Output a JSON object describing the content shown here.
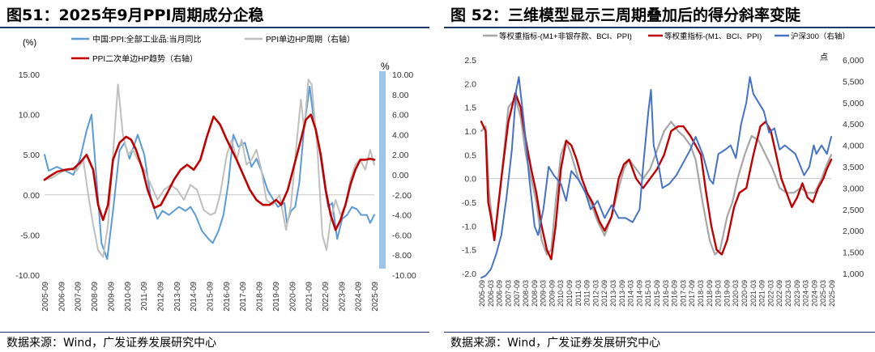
{
  "colors": {
    "blue": "#5b9bd5",
    "red": "#c00000",
    "gray": "#bfbfbf",
    "gray2": "#a6a6a6",
    "blue2": "#4472c4",
    "band": "#9dc3e6",
    "rule": "#1f3864"
  },
  "left": {
    "title": "图51：2025年9月PPI周期成分企稳",
    "source": "数据来源：Wind，广发证券发展研究中心",
    "chart_data": {
      "type": "line",
      "y_left_unit": "(%)",
      "y_right_unit": "%",
      "ylim_left": [
        -10,
        15
      ],
      "ylim_right": [
        -10,
        10
      ],
      "yticks_left": [
        "15.00",
        "10.00",
        "5.00",
        "0.00",
        "-5.00",
        "-10.00"
      ],
      "yticks_right": [
        "10.00",
        "8.00",
        "6.00",
        "4.00",
        "2.00",
        "0.00",
        "-2.00",
        "-4.00",
        "-6.00",
        "-8.00",
        "-10.00"
      ],
      "x_start": 2005.75,
      "x_end": 2025.75,
      "x_ticks": [
        "2005-09",
        "2006-09",
        "2007-09",
        "2008-09",
        "2009-09",
        "2010-09",
        "2011-09",
        "2012-09",
        "2013-09",
        "2014-09",
        "2015-09",
        "2016-09",
        "2017-09",
        "2018-09",
        "2019-09",
        "2020-09",
        "2021-09",
        "2022-09",
        "2023-09",
        "2024-09",
        "2025-09"
      ],
      "series": [
        {
          "name": "中国:PPI:全部工业品:当月同比",
          "axis": "left",
          "color": "#5b9bd5",
          "x": [
            2005.75,
            2006.0,
            2006.5,
            2007.0,
            2007.5,
            2007.9,
            2008.3,
            2008.6,
            2008.9,
            2009.2,
            2009.55,
            2009.9,
            2010.3,
            2010.6,
            2010.9,
            2011.4,
            2011.8,
            2012.2,
            2012.6,
            2012.9,
            2013.3,
            2013.6,
            2013.9,
            2014.3,
            2014.6,
            2014.9,
            2015.3,
            2015.7,
            2015.95,
            2016.3,
            2016.6,
            2016.9,
            2017.2,
            2017.5,
            2017.9,
            2018.3,
            2018.6,
            2018.9,
            2019.3,
            2019.6,
            2019.9,
            2020.3,
            2020.45,
            2020.7,
            2020.95,
            2021.2,
            2021.5,
            2021.83,
            2022.1,
            2022.4,
            2022.75,
            2022.95,
            2023.2,
            2023.5,
            2023.8,
            2024.1,
            2024.4,
            2024.7,
            2024.95,
            2025.3,
            2025.5,
            2025.75
          ],
          "y": [
            5.0,
            3.0,
            3.5,
            3.0,
            2.5,
            4.5,
            8.0,
            10.0,
            2.0,
            -6.0,
            -8.0,
            -2.0,
            5.5,
            6.5,
            4.5,
            7.5,
            5.0,
            -0.5,
            -3.0,
            -2.0,
            -2.5,
            -2.0,
            -1.5,
            -2.0,
            -1.5,
            -2.5,
            -4.5,
            -5.5,
            -6.0,
            -4.5,
            -2.5,
            1.5,
            7.5,
            6.0,
            6.5,
            3.5,
            4.5,
            3.0,
            0.5,
            -0.5,
            -1.5,
            -1.0,
            -3.5,
            -2.0,
            -1.5,
            1.5,
            8.5,
            13.5,
            9.0,
            6.0,
            1.0,
            -1.5,
            -1.0,
            -5.5,
            -3.0,
            -2.5,
            -1.5,
            -1.8,
            -2.5,
            -2.5,
            -3.5,
            -2.5
          ]
        },
        {
          "name": "PPI单边HP周期（右轴）",
          "axis": "right",
          "color": "#bfbfbf",
          "x": [
            2005.75,
            2006.2,
            2006.7,
            2007.2,
            2007.7,
            2008.1,
            2008.4,
            2008.7,
            2009.0,
            2009.3,
            2009.6,
            2009.9,
            2010.2,
            2010.5,
            2010.8,
            2011.1,
            2011.4,
            2011.8,
            2012.2,
            2012.6,
            2013.0,
            2013.4,
            2013.8,
            2014.2,
            2014.6,
            2015.0,
            2015.4,
            2015.8,
            2016.1,
            2016.4,
            2016.8,
            2017.1,
            2017.4,
            2017.7,
            2018.0,
            2018.3,
            2018.6,
            2018.9,
            2019.2,
            2019.6,
            2020.0,
            2020.4,
            2020.7,
            2021.0,
            2021.3,
            2021.5,
            2021.75,
            2021.95,
            2022.3,
            2022.6,
            2022.85,
            2023.1,
            2023.4,
            2023.7,
            2024.0,
            2024.3,
            2024.6,
            2024.9,
            2025.2,
            2025.5,
            2025.75
          ],
          "y": [
            -0.5,
            -0.3,
            0.2,
            0.6,
            0.4,
            1.5,
            -2.0,
            -5.0,
            -7.5,
            -8.2,
            -5.0,
            2.0,
            9.0,
            4.0,
            2.0,
            2.5,
            1.5,
            0.5,
            -1.0,
            -2.5,
            -1.5,
            -1.0,
            -1.5,
            -2.5,
            -1.0,
            -1.5,
            -3.5,
            -4.0,
            -3.8,
            -2.0,
            2.0,
            3.5,
            1.5,
            3.5,
            1.0,
            1.5,
            2.5,
            0.5,
            -2.5,
            -3.0,
            -2.0,
            -5.5,
            -3.0,
            2.5,
            7.5,
            4.5,
            9.5,
            9.0,
            2.5,
            -6.0,
            -7.5,
            -4.5,
            -2.5,
            -4.0,
            -3.0,
            -0.5,
            1.0,
            1.5,
            0.5,
            2.5,
            1.0
          ]
        },
        {
          "name": "PPI二次单边HP趋势（右轴）",
          "axis": "right",
          "color": "#c00000",
          "x": [
            2005.75,
            2006.0,
            2006.5,
            2007.0,
            2007.5,
            2007.9,
            2008.3,
            2008.7,
            2009.0,
            2009.3,
            2009.6,
            2009.9,
            2010.3,
            2010.7,
            2011.0,
            2011.3,
            2011.7,
            2012.0,
            2012.4,
            2012.8,
            2013.2,
            2013.6,
            2014.0,
            2014.4,
            2014.8,
            2015.2,
            2015.6,
            2016.0,
            2016.4,
            2016.8,
            2017.1,
            2017.4,
            2017.8,
            2018.2,
            2018.6,
            2019.0,
            2019.4,
            2019.8,
            2020.1,
            2020.5,
            2020.9,
            2021.3,
            2021.6,
            2021.9,
            2022.2,
            2022.5,
            2022.8,
            2023.1,
            2023.4,
            2023.7,
            2024.0,
            2024.3,
            2024.6,
            2024.9,
            2025.2,
            2025.5,
            2025.75
          ],
          "y": [
            -0.5,
            -0.2,
            0.3,
            0.5,
            0.6,
            1.2,
            2.0,
            0.5,
            -3.0,
            -4.5,
            -3.0,
            1.5,
            3.2,
            3.8,
            3.5,
            2.5,
            0.5,
            -1.5,
            -3.3,
            -3.0,
            -1.8,
            -0.5,
            0.5,
            1.0,
            0.5,
            1.5,
            3.8,
            5.8,
            5.0,
            3.5,
            2.5,
            1.5,
            0.0,
            -1.5,
            -2.5,
            -3.0,
            -3.0,
            -2.5,
            -3.0,
            -1.5,
            1.0,
            3.5,
            5.5,
            6.0,
            4.5,
            2.0,
            -1.5,
            -4.0,
            -5.5,
            -4.5,
            -3.0,
            -1.0,
            0.5,
            1.5,
            1.5,
            1.6,
            1.5
          ]
        }
      ],
      "legend": [
        "中国:PPI:全部工业品:当月同比",
        "PPI单边HP周期（右轴）",
        "PPI二次单边HP趋势（右轴）"
      ]
    }
  },
  "right": {
    "title": "图 52：三维模型显示三周期叠加后的得分斜率变陡",
    "source": "数据来源：Wind，广发证券发展研究中心",
    "chart_data": {
      "type": "line",
      "y_right_unit": "点",
      "ylim_left": [
        -2.0,
        2.5
      ],
      "ylim_right": [
        1000,
        6000
      ],
      "yticks_left": [
        "2.5",
        "2.0",
        "1.5",
        "1.0",
        "0.5",
        "0.0",
        "-0.5",
        "-1.0",
        "-1.5",
        "-2.0"
      ],
      "yticks_right": [
        "6,000",
        "5,500",
        "5,000",
        "4,500",
        "4,000",
        "3,500",
        "3,000",
        "2,500",
        "2,000",
        "1,500",
        "1,000"
      ],
      "x_start": 2005.75,
      "x_end": 2025.75,
      "x_ticks": [
        "2005-09",
        "2006-03",
        "2006-09",
        "2007-03",
        "2007-09",
        "2008-03",
        "2008-09",
        "2009-03",
        "2009-09",
        "2010-03",
        "2010-09",
        "2011-03",
        "2011-09",
        "2012-03",
        "2012-09",
        "2013-03",
        "2013-09",
        "2014-03",
        "2014-09",
        "2015-03",
        "2015-09",
        "2016-03",
        "2016-09",
        "2017-03",
        "2017-09",
        "2018-03",
        "2018-09",
        "2019-03",
        "2019-09",
        "2020-03",
        "2020-09",
        "2021-03",
        "2021-09",
        "2022-03",
        "2022-09",
        "2023-03",
        "2023-09",
        "2024-03",
        "2024-09",
        "2025-03",
        "2025-09"
      ],
      "series": [
        {
          "name": "等权重指标-(M1+非银存款、BCI、PPI)",
          "axis": "left",
          "color": "#a6a6a6",
          "x": [
            2005.75,
            2006.0,
            2006.2,
            2006.5,
            2006.9,
            2007.3,
            2007.7,
            2008.0,
            2008.3,
            2008.6,
            2008.9,
            2009.2,
            2009.5,
            2009.75,
            2010.0,
            2010.3,
            2010.6,
            2010.9,
            2011.3,
            2011.7,
            2012.0,
            2012.4,
            2012.8,
            2013.2,
            2013.6,
            2013.9,
            2014.2,
            2014.6,
            2015.0,
            2015.4,
            2015.8,
            2016.2,
            2016.6,
            2017.0,
            2017.3,
            2017.7,
            2018.0,
            2018.4,
            2018.8,
            2019.1,
            2019.4,
            2019.8,
            2020.1,
            2020.4,
            2020.8,
            2021.2,
            2021.6,
            2022.0,
            2022.4,
            2022.8,
            2023.2,
            2023.6,
            2024.0,
            2024.4,
            2024.8,
            2025.2,
            2025.5,
            2025.75
          ],
          "y": [
            1.0,
            1.1,
            -0.3,
            -1.3,
            0.0,
            1.5,
            1.7,
            1.3,
            0.5,
            0.0,
            -0.5,
            -1.3,
            -1.6,
            -1.5,
            -0.5,
            0.5,
            0.8,
            0.5,
            0.0,
            -0.3,
            -0.5,
            -0.9,
            -1.2,
            -0.8,
            -0.2,
            0.2,
            0.4,
            0.2,
            0.0,
            0.2,
            0.6,
            1.0,
            1.2,
            1.0,
            0.9,
            0.7,
            0.4,
            -0.5,
            -1.3,
            -1.6,
            -1.5,
            -0.8,
            -0.5,
            0.0,
            0.5,
            0.9,
            0.8,
            0.5,
            0.2,
            -0.2,
            -0.3,
            -0.3,
            -0.2,
            -0.3,
            -0.3,
            0.0,
            0.3,
            0.5
          ]
        },
        {
          "name": "等权重指标-(M1、BCI、PPI)",
          "axis": "left",
          "color": "#c00000",
          "x": [
            2005.75,
            2006.0,
            2006.15,
            2006.3,
            2006.5,
            2006.9,
            2007.3,
            2007.7,
            2008.0,
            2008.3,
            2008.6,
            2008.9,
            2009.2,
            2009.5,
            2009.75,
            2010.0,
            2010.3,
            2010.6,
            2010.9,
            2011.2,
            2011.5,
            2011.8,
            2012.1,
            2012.5,
            2012.8,
            2013.2,
            2013.6,
            2013.9,
            2014.2,
            2014.6,
            2015.0,
            2015.4,
            2015.8,
            2016.2,
            2016.6,
            2017.0,
            2017.3,
            2017.7,
            2018.0,
            2018.3,
            2018.6,
            2018.9,
            2019.2,
            2019.5,
            2019.8,
            2020.2,
            2020.5,
            2020.9,
            2021.3,
            2021.7,
            2022.0,
            2022.3,
            2022.6,
            2022.9,
            2023.2,
            2023.5,
            2023.8,
            2024.1,
            2024.4,
            2024.7,
            2025.0,
            2025.3,
            2025.5,
            2025.75
          ],
          "y": [
            1.2,
            1.0,
            -0.5,
            -0.8,
            -1.3,
            0.0,
            1.2,
            1.8,
            1.5,
            0.8,
            0.2,
            -0.3,
            -1.0,
            -1.5,
            -1.7,
            -1.0,
            0.2,
            0.8,
            0.7,
            0.4,
            0.0,
            -0.3,
            -0.5,
            -0.9,
            -1.1,
            -0.8,
            0.0,
            0.3,
            0.4,
            0.0,
            -0.2,
            0.0,
            0.2,
            0.5,
            1.0,
            1.1,
            1.1,
            0.9,
            0.7,
            0.5,
            -0.3,
            -1.0,
            -1.5,
            -1.6,
            -1.3,
            -0.6,
            -0.3,
            -0.2,
            0.5,
            1.1,
            1.2,
            1.0,
            0.5,
            0.0,
            -0.3,
            -0.6,
            -0.4,
            -0.1,
            -0.4,
            -0.5,
            -0.2,
            0.0,
            0.2,
            0.4
          ]
        },
        {
          "name": "沪深300（右轴）",
          "axis": "right",
          "color": "#4472c4",
          "x": [
            2005.75,
            2006.0,
            2006.3,
            2006.6,
            2006.9,
            2007.2,
            2007.5,
            2007.75,
            2007.9,
            2008.2,
            2008.5,
            2008.8,
            2009.0,
            2009.3,
            2009.6,
            2009.9,
            2010.3,
            2010.6,
            2010.9,
            2011.3,
            2011.7,
            2012.0,
            2012.4,
            2012.8,
            2013.2,
            2013.6,
            2014.0,
            2014.4,
            2014.8,
            2015.0,
            2015.3,
            2015.45,
            2015.6,
            2015.9,
            2016.1,
            2016.5,
            2016.9,
            2017.3,
            2017.7,
            2018.0,
            2018.4,
            2018.8,
            2019.0,
            2019.3,
            2019.7,
            2020.0,
            2020.3,
            2020.6,
            2020.9,
            2021.1,
            2021.3,
            2021.6,
            2021.9,
            2022.2,
            2022.5,
            2022.8,
            2023.1,
            2023.4,
            2023.7,
            2024.0,
            2024.2,
            2024.5,
            2024.75,
            2024.9,
            2025.2,
            2025.5,
            2025.75
          ],
          "y": [
            900,
            950,
            1100,
            1450,
            1900,
            2800,
            3900,
            5300,
            5600,
            4500,
            3200,
            2100,
            1900,
            2500,
            3500,
            3300,
            3100,
            2700,
            3400,
            3200,
            2900,
            2500,
            2700,
            2300,
            2600,
            2300,
            2300,
            2200,
            2500,
            3500,
            4800,
            5300,
            4000,
            3500,
            3000,
            3100,
            3300,
            3600,
            3900,
            4200,
            3800,
            3200,
            3100,
            3800,
            3900,
            4000,
            3700,
            4500,
            5000,
            5600,
            5200,
            5000,
            4800,
            4300,
            4400,
            3900,
            4000,
            3900,
            3800,
            3500,
            3300,
            3500,
            4000,
            3800,
            4000,
            3800,
            4200
          ]
        }
      ],
      "legend": [
        "等权重指标-(M1+非银存款、BCI、PPI)",
        "等权重指标-(M1、BCI、PPI)",
        "沪深300（右轴）"
      ]
    }
  }
}
